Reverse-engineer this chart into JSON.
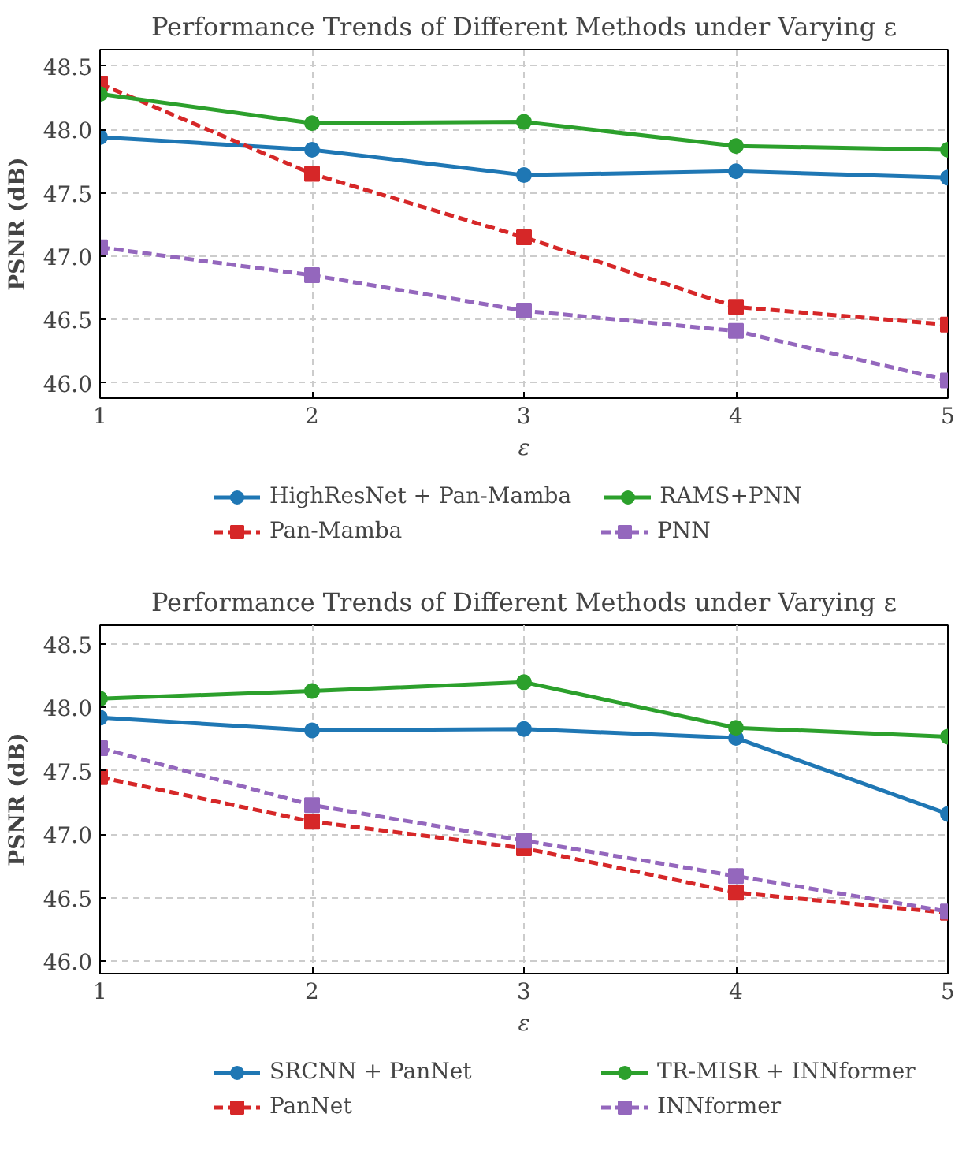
{
  "chart_data": [
    {
      "type": "line",
      "title": "Performance Trends of Different Methods under Varying ε",
      "xlabel": "ε",
      "ylabel": "PSNR (dB)",
      "x": [
        1,
        2,
        3,
        4,
        5
      ],
      "xlim": [
        1,
        5
      ],
      "xticks": [
        1,
        2,
        3,
        4,
        5
      ],
      "ylim": [
        45.88,
        48.63
      ],
      "yticks": [
        {
          "value": 46,
          "label": "46.0"
        },
        {
          "value": 46.5,
          "label": "46.5"
        },
        {
          "value": 47,
          "label": "47.0"
        },
        {
          "value": 47.5,
          "label": "47.5"
        },
        {
          "value": 48,
          "label": "48.0"
        },
        {
          "value": 48.5,
          "label": "48.5"
        }
      ],
      "grid": true,
      "legend": "bottom",
      "series": [
        {
          "name": "HighResNet + Pan-Mamba",
          "color": "#1f77b4",
          "marker": "circle",
          "line_style": "solid",
          "values": [
            47.94,
            47.84,
            47.64,
            47.67,
            47.62
          ]
        },
        {
          "name": "Pan-Mamba",
          "color": "#d62728",
          "marker": "square",
          "line_style": "dashed",
          "values": [
            48.36,
            47.65,
            47.15,
            46.6,
            46.46
          ]
        },
        {
          "name": "RAMS+PNN",
          "color": "#2ca02c",
          "marker": "circle",
          "line_style": "solid",
          "values": [
            48.28,
            48.05,
            48.06,
            47.87,
            47.84
          ]
        },
        {
          "name": "PNN",
          "color": "#9467bd",
          "marker": "square",
          "line_style": "dashed",
          "values": [
            47.07,
            46.85,
            46.57,
            46.41,
            46.02
          ]
        }
      ]
    },
    {
      "type": "line",
      "title": "Performance Trends of Different Methods under Varying ε",
      "xlabel": "ε",
      "ylabel": "PSNR (dB)",
      "x": [
        1,
        2,
        3,
        4,
        5
      ],
      "xlim": [
        1,
        5
      ],
      "xticks": [
        1,
        2,
        3,
        4,
        5
      ],
      "ylim": [
        45.9,
        48.65
      ],
      "yticks": [
        {
          "value": 46,
          "label": "46.0"
        },
        {
          "value": 46.5,
          "label": "46.5"
        },
        {
          "value": 47,
          "label": "47.0"
        },
        {
          "value": 47.5,
          "label": "47.5"
        },
        {
          "value": 48,
          "label": "48.0"
        },
        {
          "value": 48.5,
          "label": "48.5"
        }
      ],
      "grid": true,
      "legend": "bottom",
      "series": [
        {
          "name": "SRCNN + PanNet",
          "color": "#1f77b4",
          "marker": "circle",
          "line_style": "solid",
          "values": [
            47.92,
            47.82,
            47.83,
            47.76,
            47.16
          ]
        },
        {
          "name": "PanNet",
          "color": "#d62728",
          "marker": "square",
          "line_style": "dashed",
          "values": [
            47.45,
            47.1,
            46.89,
            46.54,
            46.38
          ]
        },
        {
          "name": "TR-MISR + INNformer",
          "color": "#2ca02c",
          "marker": "circle",
          "line_style": "solid",
          "values": [
            48.07,
            48.13,
            48.2,
            47.84,
            47.77
          ]
        },
        {
          "name": "INNformer",
          "color": "#9467bd",
          "marker": "square",
          "line_style": "dashed",
          "values": [
            47.68,
            47.23,
            46.95,
            46.67,
            46.39
          ]
        }
      ]
    }
  ]
}
